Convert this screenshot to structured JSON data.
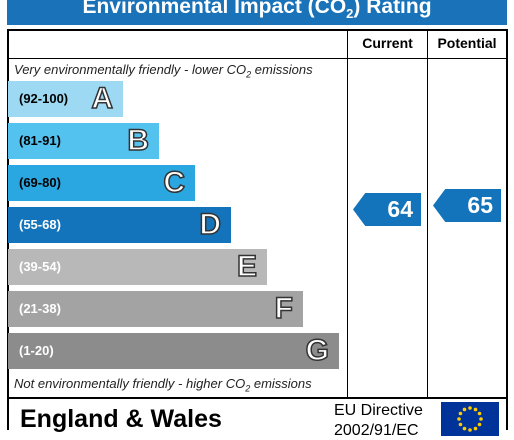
{
  "title": {
    "prefix": "Environmental Impact (CO",
    "sub": "2",
    "suffix": ") Rating"
  },
  "headers": {
    "current": "Current",
    "potential": "Potential"
  },
  "captions": {
    "top_prefix": "Very environmentally friendly - lower CO",
    "top_sub": "2",
    "top_suffix": " emissions",
    "bottom_prefix": "Not environmentally friendly - higher CO",
    "bottom_sub": "2",
    "bottom_suffix": " emissions"
  },
  "chart_data": {
    "type": "bar",
    "categories": [
      "(92-100)",
      "(81-91)",
      "(69-80)",
      "(55-68)",
      "(39-54)",
      "(21-38)",
      "(1-20)"
    ],
    "letters": [
      "A",
      "B",
      "C",
      "D",
      "E",
      "F",
      "G"
    ],
    "colors": [
      "#9dd9f3",
      "#54c2ee",
      "#2aa7e0",
      "#1474bb",
      "#b8b8b8",
      "#a3a3a3",
      "#8c8c8c"
    ],
    "range_text_colors": [
      "#000000",
      "#000000",
      "#000000",
      "#ffffff",
      "#ffffff",
      "#ffffff",
      "#ffffff"
    ],
    "current": 64,
    "potential": 65,
    "current_band": "D",
    "potential_band": "D",
    "arrow_color": "#1474bb"
  },
  "footer": {
    "country": "England & Wales",
    "directive": "EU Directive",
    "directive_no": "2002/91/EC"
  },
  "flag": {
    "color": "#003399",
    "star_color": "#ffcc00"
  }
}
